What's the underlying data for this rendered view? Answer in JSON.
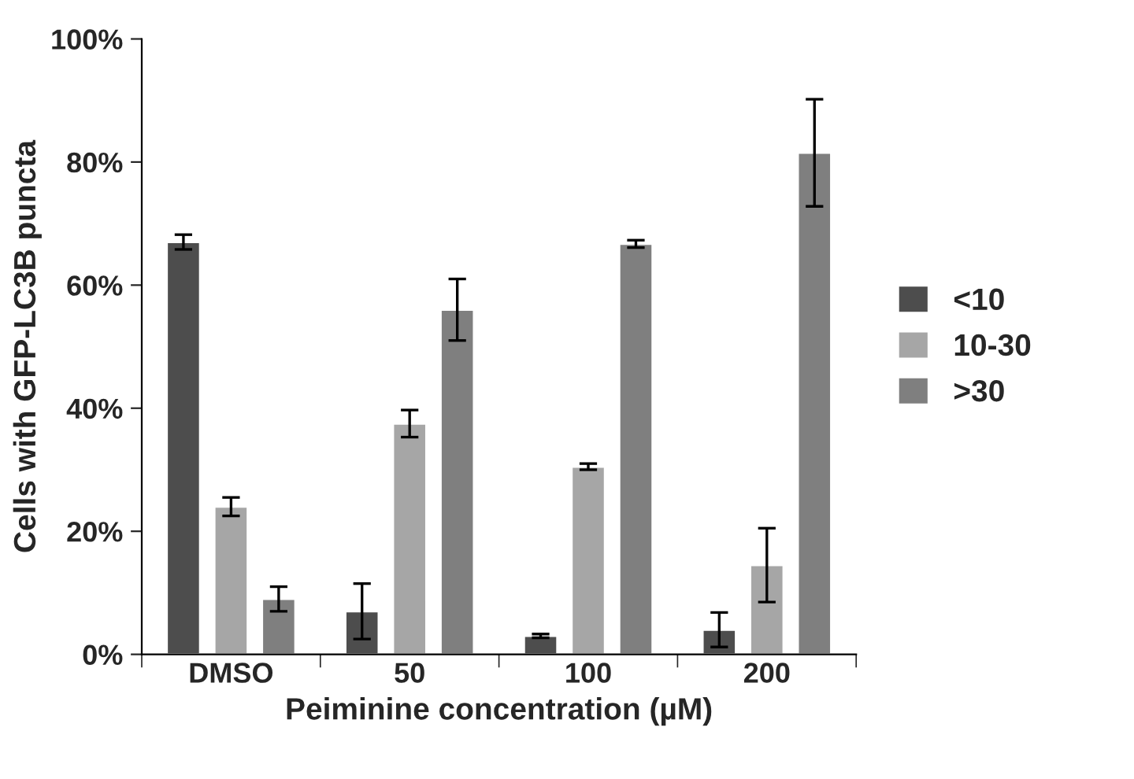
{
  "chart_data": {
    "type": "bar",
    "xlabel": "Peiminine concentration (µM)",
    "ylabel": "Cells with GFP-LC3B puncta",
    "categories": [
      "DMSO",
      "50",
      "100",
      "200"
    ],
    "series": [
      {
        "name": "<10",
        "color": "#4d4d4d",
        "values": [
          67,
          7,
          3,
          4
        ],
        "errors": [
          1.2,
          4.5,
          0.3,
          2.8
        ]
      },
      {
        "name": "10-30",
        "color": "#a6a6a6",
        "values": [
          24,
          37.5,
          30.5,
          14.5
        ],
        "errors": [
          1.5,
          2.2,
          0.5,
          6
        ]
      },
      {
        "name": ">30",
        "color": "#7f7f7f",
        "values": [
          9,
          56,
          66.7,
          81.5
        ],
        "errors": [
          2,
          5,
          0.6,
          8.7
        ]
      }
    ],
    "ylim": [
      0,
      100
    ],
    "yticks": [
      {
        "value": 0,
        "label": "0%"
      },
      {
        "value": 20,
        "label": "20%"
      },
      {
        "value": 40,
        "label": "40%"
      },
      {
        "value": 60,
        "label": "60%"
      },
      {
        "value": 80,
        "label": "80%"
      },
      {
        "value": 100,
        "label": "100%"
      }
    ],
    "grid": false,
    "legend": "right"
  }
}
